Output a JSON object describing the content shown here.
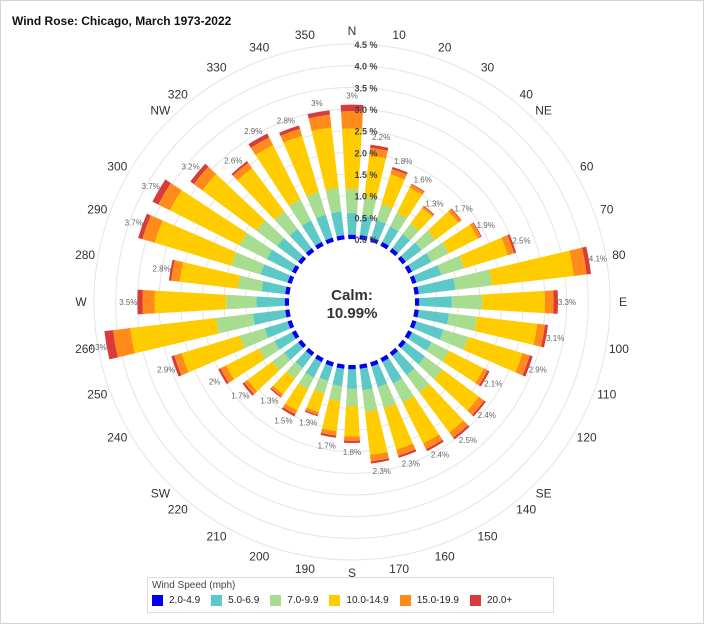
{
  "title": "Wind Rose: Chicago, March 1973-2022",
  "chart_data": {
    "type": "wind_rose",
    "title": "Wind Rose: Chicago, March 1973-2022",
    "calm_label": "Calm:",
    "calm_value": "10.99%",
    "radial_axis": {
      "unit": "%",
      "ticks": [
        0.0,
        0.5,
        1.0,
        1.5,
        2.0,
        2.5,
        3.0,
        3.5,
        4.0,
        4.5
      ],
      "tick_labels": [
        "0.0 %",
        "0.5 %",
        "1.0 %",
        "1.5 %",
        "2.0 %",
        "2.5 %",
        "3.0 %",
        "3.5 %",
        "4.0 %",
        "4.5 %"
      ],
      "max": 4.5
    },
    "direction_labels": [
      {
        "angle": 0,
        "label": "N"
      },
      {
        "angle": 10,
        "label": "10"
      },
      {
        "angle": 20,
        "label": "20"
      },
      {
        "angle": 30,
        "label": "30"
      },
      {
        "angle": 40,
        "label": "40"
      },
      {
        "angle": 45,
        "label": "NE"
      },
      {
        "angle": 60,
        "label": "60"
      },
      {
        "angle": 70,
        "label": "70"
      },
      {
        "angle": 80,
        "label": "80"
      },
      {
        "angle": 90,
        "label": "E"
      },
      {
        "angle": 100,
        "label": "100"
      },
      {
        "angle": 110,
        "label": "110"
      },
      {
        "angle": 120,
        "label": "120"
      },
      {
        "angle": 135,
        "label": "SE"
      },
      {
        "angle": 140,
        "label": "140"
      },
      {
        "angle": 150,
        "label": "150"
      },
      {
        "angle": 160,
        "label": "160"
      },
      {
        "angle": 170,
        "label": "170"
      },
      {
        "angle": 180,
        "label": "S"
      },
      {
        "angle": 190,
        "label": "190"
      },
      {
        "angle": 200,
        "label": "200"
      },
      {
        "angle": 210,
        "label": "210"
      },
      {
        "angle": 220,
        "label": "220"
      },
      {
        "angle": 225,
        "label": "SW"
      },
      {
        "angle": 240,
        "label": "240"
      },
      {
        "angle": 250,
        "label": "250"
      },
      {
        "angle": 260,
        "label": "260"
      },
      {
        "angle": 270,
        "label": "W"
      },
      {
        "angle": 280,
        "label": "280"
      },
      {
        "angle": 290,
        "label": "290"
      },
      {
        "angle": 300,
        "label": "300"
      },
      {
        "angle": 315,
        "label": "NW"
      },
      {
        "angle": 320,
        "label": "320"
      },
      {
        "angle": 330,
        "label": "330"
      },
      {
        "angle": 340,
        "label": "340"
      },
      {
        "angle": 350,
        "label": "350"
      }
    ],
    "directions": [
      0,
      10,
      20,
      30,
      40,
      50,
      60,
      70,
      80,
      90,
      100,
      110,
      120,
      130,
      140,
      150,
      160,
      170,
      180,
      190,
      200,
      210,
      220,
      230,
      240,
      250,
      260,
      270,
      280,
      290,
      300,
      310,
      320,
      330,
      340,
      350
    ],
    "totals": [
      3.1,
      2.2,
      1.8,
      1.6,
      1.3,
      1.7,
      1.9,
      2.5,
      4.1,
      3.3,
      3.1,
      2.9,
      2.1,
      2.4,
      2.5,
      2.4,
      2.3,
      2.3,
      1.8,
      1.7,
      1.3,
      1.5,
      1.3,
      1.7,
      2.0,
      2.9,
      4.3,
      3.5,
      2.8,
      3.7,
      3.7,
      3.2,
      2.6,
      2.9,
      2.8,
      3.0
    ],
    "total_labels": [
      "3%",
      "2.2%",
      "1.8%",
      "1.6%",
      "1.3%",
      "1.7%",
      "1.9%",
      "2.5%",
      "4.1%",
      "3.3%",
      "3.1%",
      "2.9%",
      "2.1%",
      "2.4%",
      "2.5%",
      "2.4%",
      "2.3%",
      "2.3%",
      "1.8%",
      "1.7%",
      "1.3%",
      "1.5%",
      "1.3%",
      "1.7%",
      "2%",
      "2.9%",
      "4.3%",
      "3.5%",
      "2.8%",
      "3.7%",
      "3.7%",
      "3.2%",
      "2.6%",
      "2.9%",
      "2.8%",
      "3%"
    ],
    "series": [
      {
        "name": "2.0-4.9",
        "color": "#0000ee",
        "values": [
          0.1,
          0.1,
          0.1,
          0.1,
          0.1,
          0.1,
          0.1,
          0.1,
          0.1,
          0.1,
          0.1,
          0.1,
          0.1,
          0.1,
          0.1,
          0.1,
          0.1,
          0.1,
          0.1,
          0.1,
          0.1,
          0.1,
          0.1,
          0.1,
          0.1,
          0.1,
          0.1,
          0.1,
          0.1,
          0.1,
          0.1,
          0.1,
          0.1,
          0.1,
          0.1,
          0.1
        ]
      },
      {
        "name": "5.0-6.9",
        "color": "#5cc8c8",
        "values": [
          0.5,
          0.45,
          0.42,
          0.4,
          0.4,
          0.45,
          0.5,
          0.6,
          0.85,
          0.75,
          0.7,
          0.65,
          0.5,
          0.55,
          0.55,
          0.55,
          0.5,
          0.5,
          0.45,
          0.4,
          0.35,
          0.4,
          0.35,
          0.4,
          0.45,
          0.55,
          0.75,
          0.65,
          0.55,
          0.65,
          0.65,
          0.6,
          0.55,
          0.55,
          0.55,
          0.55
        ]
      },
      {
        "name": "7.0-9.9",
        "color": "#a8dc90",
        "values": [
          0.55,
          0.45,
          0.38,
          0.35,
          0.3,
          0.4,
          0.45,
          0.55,
          0.85,
          0.7,
          0.65,
          0.6,
          0.45,
          0.5,
          0.5,
          0.5,
          0.5,
          0.5,
          0.4,
          0.35,
          0.3,
          0.3,
          0.3,
          0.35,
          0.4,
          0.6,
          0.85,
          0.7,
          0.55,
          0.7,
          0.7,
          0.6,
          0.5,
          0.55,
          0.55,
          0.55
        ]
      },
      {
        "name": "10.0-14.9",
        "color": "#ffcc00",
        "values": [
          1.4,
          0.95,
          0.72,
          0.65,
          0.45,
          0.65,
          0.75,
          1.05,
          1.9,
          1.45,
          1.4,
          1.3,
          0.9,
          1.05,
          1.15,
          1.05,
          1.0,
          1.0,
          0.7,
          0.7,
          0.45,
          0.55,
          0.45,
          0.7,
          0.85,
          1.4,
          2.0,
          1.65,
          1.35,
          1.85,
          1.8,
          1.55,
          1.25,
          1.4,
          1.35,
          1.4
        ]
      },
      {
        "name": "15.0-19.9",
        "color": "#ff8c1a",
        "values": [
          0.4,
          0.18,
          0.13,
          0.08,
          0.05,
          0.08,
          0.08,
          0.15,
          0.3,
          0.2,
          0.18,
          0.18,
          0.1,
          0.15,
          0.15,
          0.15,
          0.15,
          0.15,
          0.1,
          0.1,
          0.07,
          0.1,
          0.07,
          0.1,
          0.15,
          0.18,
          0.4,
          0.28,
          0.2,
          0.3,
          0.3,
          0.25,
          0.15,
          0.2,
          0.17,
          0.3
        ]
      },
      {
        "name": "20.0+",
        "color": "#d93a3a",
        "values": [
          0.15,
          0.07,
          0.05,
          0.02,
          0.02,
          0.02,
          0.02,
          0.05,
          0.1,
          0.1,
          0.07,
          0.07,
          0.05,
          0.05,
          0.05,
          0.05,
          0.05,
          0.05,
          0.05,
          0.05,
          0.03,
          0.05,
          0.03,
          0.05,
          0.05,
          0.07,
          0.2,
          0.12,
          0.05,
          0.1,
          0.15,
          0.1,
          0.05,
          0.1,
          0.08,
          0.1
        ]
      }
    ],
    "legend": {
      "title": "Wind Speed (mph)",
      "position": "bottom"
    }
  }
}
